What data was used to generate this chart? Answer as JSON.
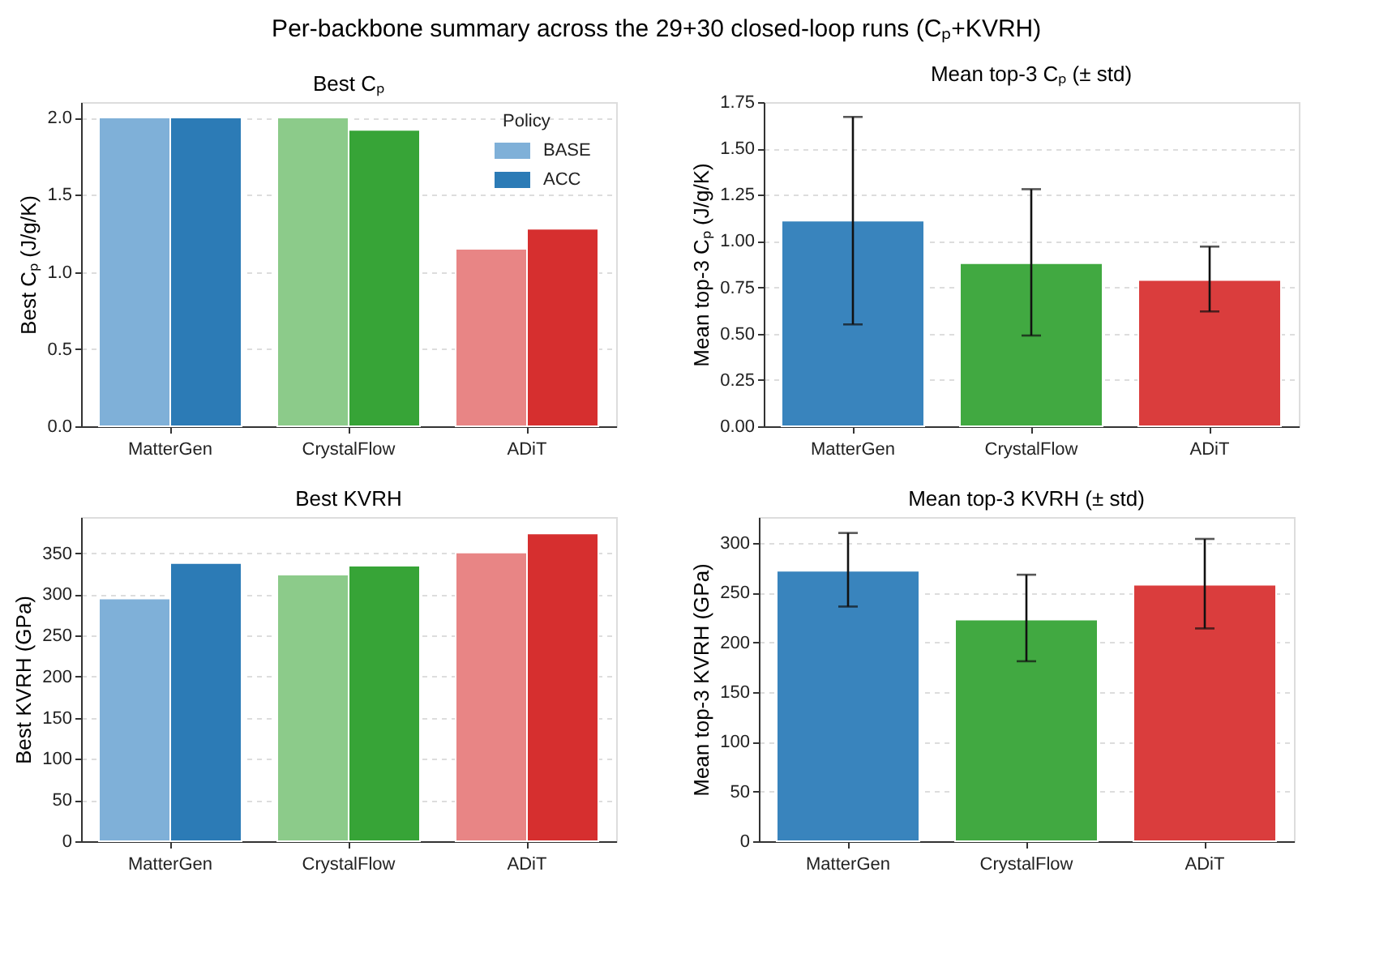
{
  "chart_data": [
    {
      "type": "bar",
      "title": "Best Cₚ",
      "ylabel": "Best Cₚ (J/g/K)",
      "annotations": [
        "Per-backbone summary across the 29+30 closed-loop runs (Cₚ+KVRH)"
      ],
      "categories": [
        "MatterGen",
        "CrystalFlow",
        "ADiT"
      ],
      "series": [
        {
          "name": "BASE",
          "colors": [
            "#7fb0d8",
            "#8ccb8a",
            "#e88585"
          ],
          "values": [
            2.0,
            2.0,
            1.15
          ]
        },
        {
          "name": "ACC",
          "colors": [
            "#2c7bb6",
            "#37a437",
            "#d62f2f"
          ],
          "values": [
            2.0,
            1.92,
            1.28
          ]
        }
      ],
      "legend_title": "Policy",
      "legend": "top right",
      "ylim": [
        0,
        2.1
      ],
      "yticks": [
        {
          "value": 0,
          "label": "0.0"
        },
        0.5,
        {
          "value": 1,
          "label": "1.0"
        },
        1.5,
        {
          "value": 2,
          "label": "2.0"
        }
      ],
      "grid": "y"
    },
    {
      "type": "bar",
      "title": "Mean top-3 Cₚ (± std)",
      "ylabel": "Mean top-3 Cₚ (J/g/K)",
      "categories": [
        "MatterGen",
        "CrystalFlow",
        "ADiT"
      ],
      "values": [
        1.11,
        0.88,
        0.79
      ],
      "colors": [
        "#3984bd",
        "#41a941",
        "#da3d3d"
      ],
      "errors": [
        [
          0.55,
          1.67
        ],
        [
          0.49,
          1.28
        ],
        [
          0.62,
          0.97
        ]
      ],
      "ylim": [
        0,
        1.75
      ],
      "yticks": [
        {
          "value": 0,
          "label": "0.00"
        },
        0.25,
        {
          "value": 0.5,
          "label": "0.50"
        },
        0.75,
        {
          "value": 1,
          "label": "1.00"
        },
        1.25,
        {
          "value": 1.5,
          "label": "1.50"
        },
        1.75
      ],
      "grid": "y"
    },
    {
      "type": "bar",
      "title": "Best KVRH",
      "ylabel": "Best KVRH (GPa)",
      "categories": [
        "MatterGen",
        "CrystalFlow",
        "ADiT"
      ],
      "series": [
        {
          "colors": [
            "#7fb0d8",
            "#8ccb8a",
            "#e88585"
          ],
          "values": [
            295,
            324,
            351
          ]
        },
        {
          "colors": [
            "#2c7bb6",
            "#37a437",
            "#d62f2f"
          ],
          "values": [
            338,
            335,
            374
          ]
        }
      ],
      "ylim": [
        0,
        394
      ],
      "yticks": [
        0,
        50,
        100,
        150,
        200,
        250,
        300,
        350
      ],
      "grid": "y"
    },
    {
      "type": "bar",
      "title": "Mean top-3 KVRH (± std)",
      "ylabel": "Mean top-3 KVRH (GPa)",
      "categories": [
        "MatterGen",
        "CrystalFlow",
        "ADiT"
      ],
      "values": [
        272,
        223,
        258
      ],
      "colors": [
        "#3984bd",
        "#41a941",
        "#da3d3d"
      ],
      "errors": [
        [
          236,
          310
        ],
        [
          181,
          268
        ],
        [
          214,
          304
        ]
      ],
      "ylim": [
        0,
        326
      ],
      "yticks": [
        0,
        50,
        100,
        150,
        200,
        250,
        300
      ],
      "grid": "y"
    }
  ]
}
